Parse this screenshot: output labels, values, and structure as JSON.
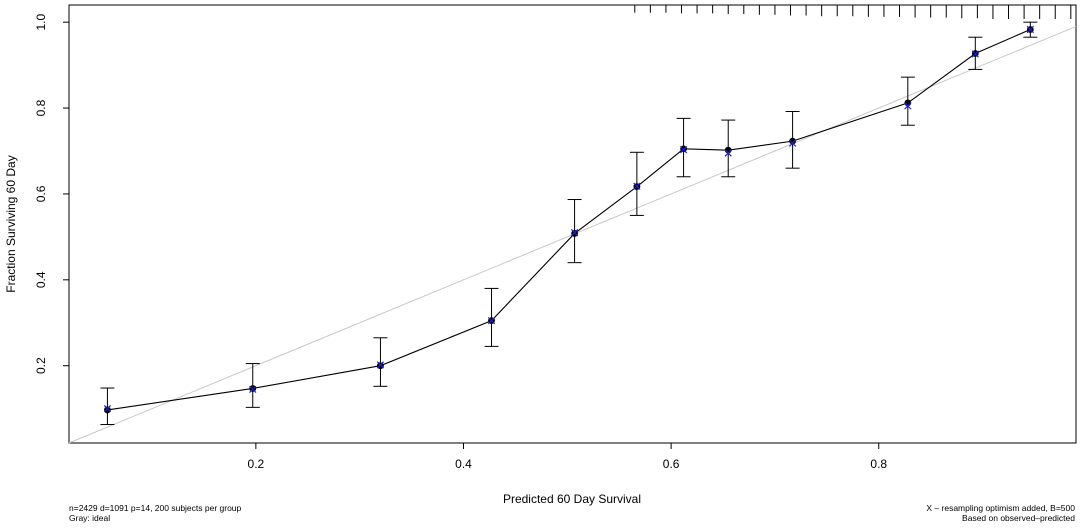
{
  "chart_data": {
    "type": "line",
    "title": "",
    "xlabel": "Predicted  60 Day Survival",
    "ylabel": "Fraction Surviving 60 Day",
    "xlim": [
      0.02,
      0.99
    ],
    "ylim": [
      0.02,
      1.04
    ],
    "xticks": [
      0.2,
      0.4,
      0.6,
      0.8
    ],
    "xtick_labels": [
      "0.2",
      "0.4",
      "0.6",
      "0.8"
    ],
    "yticks": [
      0.2,
      0.4,
      0.6,
      0.8,
      1.0
    ],
    "ytick_labels": [
      "0.2",
      "0.4",
      "0.6",
      "0.8",
      "1.0"
    ],
    "grid": false,
    "ideal_line": {
      "from": [
        0.0,
        0.0
      ],
      "to": [
        1.0,
        1.0
      ],
      "color": "#c8c8c8"
    },
    "series": [
      {
        "x": [
          0.057,
          0.197,
          0.32,
          0.427,
          0.507,
          0.567,
          0.612,
          0.655,
          0.717,
          0.828,
          0.893,
          0.946
        ],
        "values": [
          0.097,
          0.147,
          0.2,
          0.305,
          0.508,
          0.617,
          0.705,
          0.702,
          0.723,
          0.812,
          0.927,
          0.983
        ],
        "ci_lower": [
          0.063,
          0.103,
          0.152,
          0.245,
          0.44,
          0.55,
          0.64,
          0.64,
          0.66,
          0.76,
          0.89,
          0.965
        ],
        "ci_upper": [
          0.148,
          0.205,
          0.265,
          0.38,
          0.587,
          0.697,
          0.776,
          0.772,
          0.792,
          0.872,
          0.965,
          1.0
        ],
        "marker": "filled-circle",
        "color": "#000000"
      },
      {
        "x": [
          0.057,
          0.197,
          0.32,
          0.427,
          0.507,
          0.567,
          0.612,
          0.655,
          0.717,
          0.828,
          0.893,
          0.946
        ],
        "values": [
          0.1,
          0.145,
          0.202,
          0.305,
          0.51,
          0.618,
          0.703,
          0.695,
          0.718,
          0.805,
          0.926,
          0.983
        ],
        "marker": "x",
        "color": "#1f1fd6"
      }
    ],
    "rug_x": [
      0.565,
      0.58,
      0.595,
      0.61,
      0.625,
      0.64,
      0.655,
      0.67,
      0.685,
      0.7,
      0.715,
      0.73,
      0.745,
      0.76,
      0.775,
      0.79,
      0.805,
      0.82,
      0.835,
      0.85,
      0.865,
      0.88,
      0.895,
      0.91,
      0.925,
      0.94,
      0.955,
      0.97,
      0.985
    ],
    "rug_heights": [
      0.55,
      0.55,
      0.55,
      0.6,
      0.6,
      0.6,
      0.65,
      0.65,
      0.7,
      0.7,
      0.75,
      0.75,
      0.8,
      0.8,
      0.8,
      0.85,
      0.85,
      0.85,
      0.9,
      0.9,
      0.9,
      0.95,
      0.95,
      1.0,
      1.0,
      1.0,
      1.0,
      1.0,
      1.0
    ]
  },
  "footnotes": {
    "left_line1": "n=2429 d=1091 p=14, 200 subjects per group",
    "left_line2": "Gray: ideal",
    "right_line1": "X – resampling optimism added, B=500",
    "right_line2": "Based on observed–predicted"
  }
}
